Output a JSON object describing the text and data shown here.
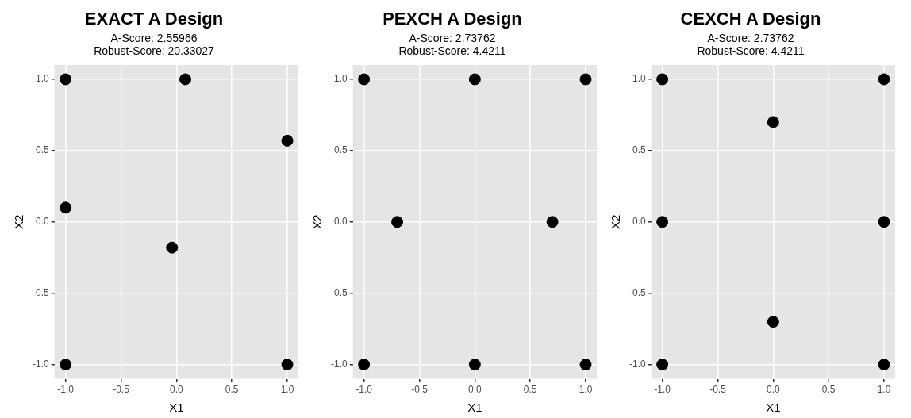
{
  "chart_data": [
    {
      "type": "scatter",
      "title": "EXACT A Design",
      "subtitle": "A-Score: 2.55966\nRobust-Score: 20.33027",
      "xlabel": "X1",
      "ylabel": "X2",
      "x": [
        -1,
        0.08,
        1,
        -1,
        -0.04,
        -1,
        1
      ],
      "values": [
        1,
        1,
        0.57,
        0.1,
        -0.18,
        -1,
        -1
      ],
      "color": "#000000",
      "marker": "circle",
      "xlim": [
        -1.1,
        1.1
      ],
      "ylim": [
        -1.1,
        1.1
      ],
      "xticks": [
        {
          "value": -1,
          "label": "-1.0"
        },
        {
          "value": -0.5,
          "label": "-0.5"
        },
        {
          "value": 0,
          "label": "0.0"
        },
        {
          "value": 0.5,
          "label": "0.5"
        },
        {
          "value": 1,
          "label": "1.0"
        }
      ],
      "yticks": [
        {
          "value": -1,
          "label": "-1.0"
        },
        {
          "value": -0.5,
          "label": "-0.5"
        },
        {
          "value": 0,
          "label": "0.0"
        },
        {
          "value": 0.5,
          "label": "0.5"
        },
        {
          "value": 1,
          "label": "1.0"
        }
      ],
      "grid": true
    },
    {
      "type": "scatter",
      "title": "PEXCH A Design",
      "subtitle": "A-Score: 2.73762\nRobust-Score: 4.4211",
      "xlabel": "X1",
      "ylabel": "X2",
      "x": [
        -1,
        0,
        1,
        -0.7,
        0.7,
        -1,
        0,
        1
      ],
      "values": [
        1,
        1,
        1,
        0,
        0,
        -1,
        -1,
        -1
      ],
      "color": "#000000",
      "marker": "circle",
      "xlim": [
        -1.1,
        1.1
      ],
      "ylim": [
        -1.1,
        1.1
      ],
      "xticks": [
        {
          "value": -1,
          "label": "-1.0"
        },
        {
          "value": -0.5,
          "label": "-0.5"
        },
        {
          "value": 0,
          "label": "0.0"
        },
        {
          "value": 0.5,
          "label": "0.5"
        },
        {
          "value": 1,
          "label": "1.0"
        }
      ],
      "yticks": [
        {
          "value": -1,
          "label": "-1.0"
        },
        {
          "value": -0.5,
          "label": "-0.5"
        },
        {
          "value": 0,
          "label": "0.0"
        },
        {
          "value": 0.5,
          "label": "0.5"
        },
        {
          "value": 1,
          "label": "1.0"
        }
      ],
      "grid": true
    },
    {
      "type": "scatter",
      "title": "CEXCH A Design",
      "subtitle": "A-Score: 2.73762\nRobust-Score: 4.4211",
      "xlabel": "X1",
      "ylabel": "X2",
      "x": [
        -1,
        1,
        0,
        -1,
        1,
        0,
        -1,
        1
      ],
      "values": [
        1,
        1,
        0.7,
        0,
        0,
        -0.7,
        -1,
        -1
      ],
      "color": "#000000",
      "marker": "circle",
      "xlim": [
        -1.1,
        1.1
      ],
      "ylim": [
        -1.1,
        1.1
      ],
      "xticks": [
        {
          "value": -1,
          "label": "-1.0"
        },
        {
          "value": -0.5,
          "label": "-0.5"
        },
        {
          "value": 0,
          "label": "0.0"
        },
        {
          "value": 0.5,
          "label": "0.5"
        },
        {
          "value": 1,
          "label": "1.0"
        }
      ],
      "yticks": [
        {
          "value": -1,
          "label": "-1.0"
        },
        {
          "value": -0.5,
          "label": "-0.5"
        },
        {
          "value": 0,
          "label": "0.0"
        },
        {
          "value": 0.5,
          "label": "0.5"
        },
        {
          "value": 1,
          "label": "1.0"
        }
      ],
      "grid": true
    }
  ]
}
